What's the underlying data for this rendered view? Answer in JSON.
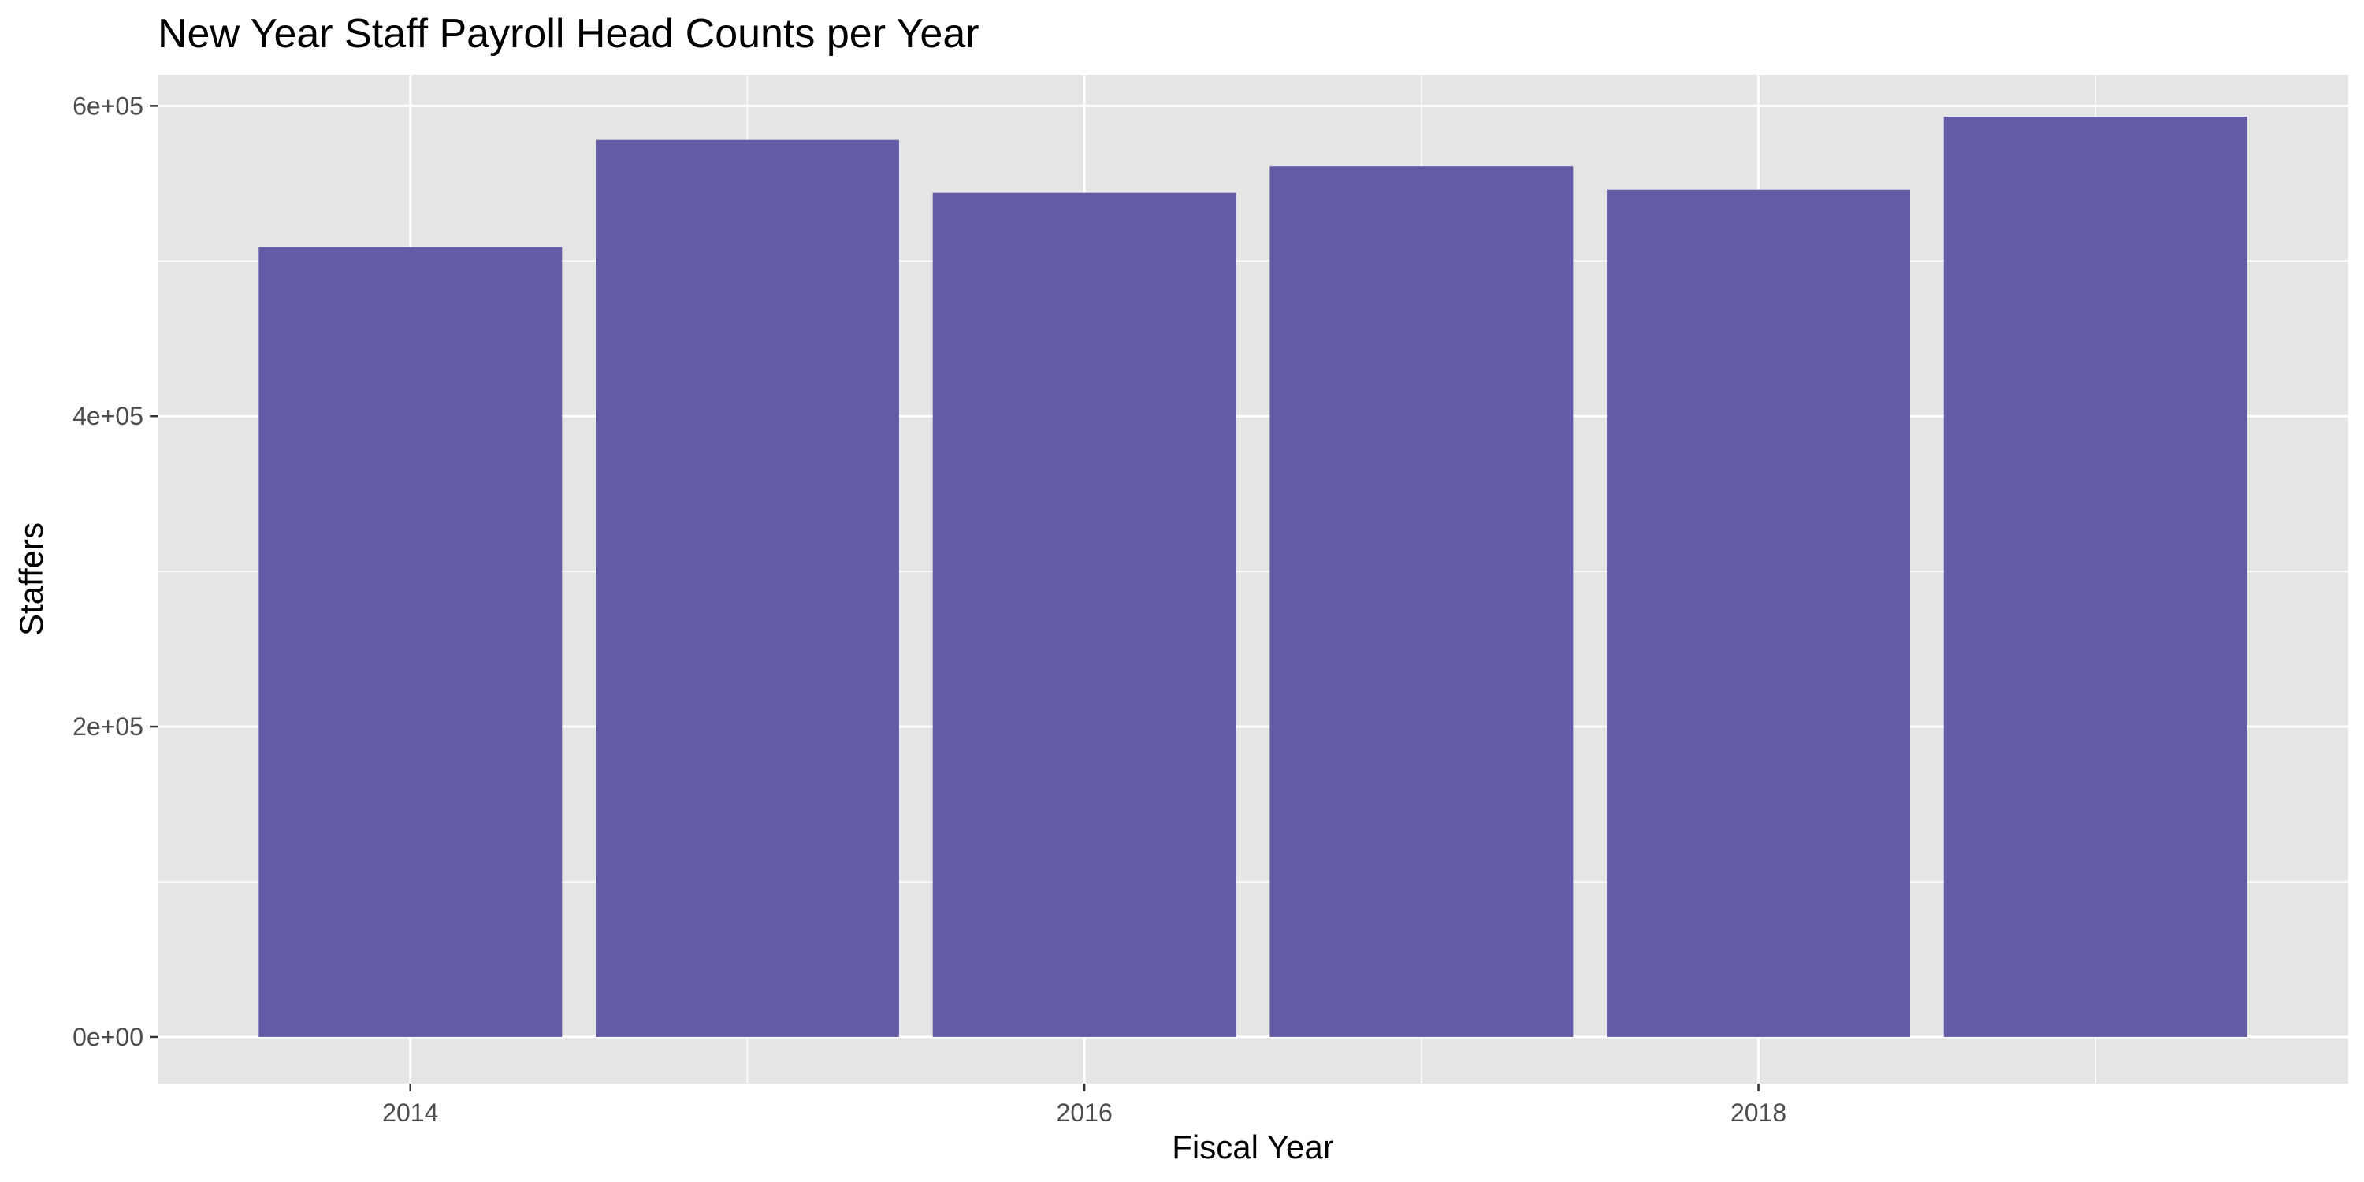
{
  "chart_data": {
    "type": "bar",
    "title": "New Year Staff Payroll Head Counts per Year",
    "xlabel": "Fiscal Year",
    "ylabel": "Staffers",
    "categories": [
      2014,
      2015,
      2016,
      2017,
      2018,
      2019
    ],
    "values": [
      509000,
      578000,
      544000,
      561000,
      546000,
      593000
    ],
    "x_ticks": [
      2014,
      2016,
      2018
    ],
    "x_tick_labels": [
      "2014",
      "2016",
      "2018"
    ],
    "y_ticks": [
      0,
      200000,
      400000,
      600000
    ],
    "y_tick_labels": [
      "0e+00",
      "2e+05",
      "4e+05",
      "6e+05"
    ],
    "xlim": [
      2013.25,
      2019.75
    ],
    "ylim": [
      -30000,
      620000
    ],
    "grid": true,
    "legend": "none",
    "colors": {
      "bar": "#625BA6",
      "panel": "#E5E5E5",
      "grid": "#FFFFFF",
      "text": "#000000",
      "tick_text": "#4D4D4D",
      "tick_mark": "#333333"
    }
  }
}
